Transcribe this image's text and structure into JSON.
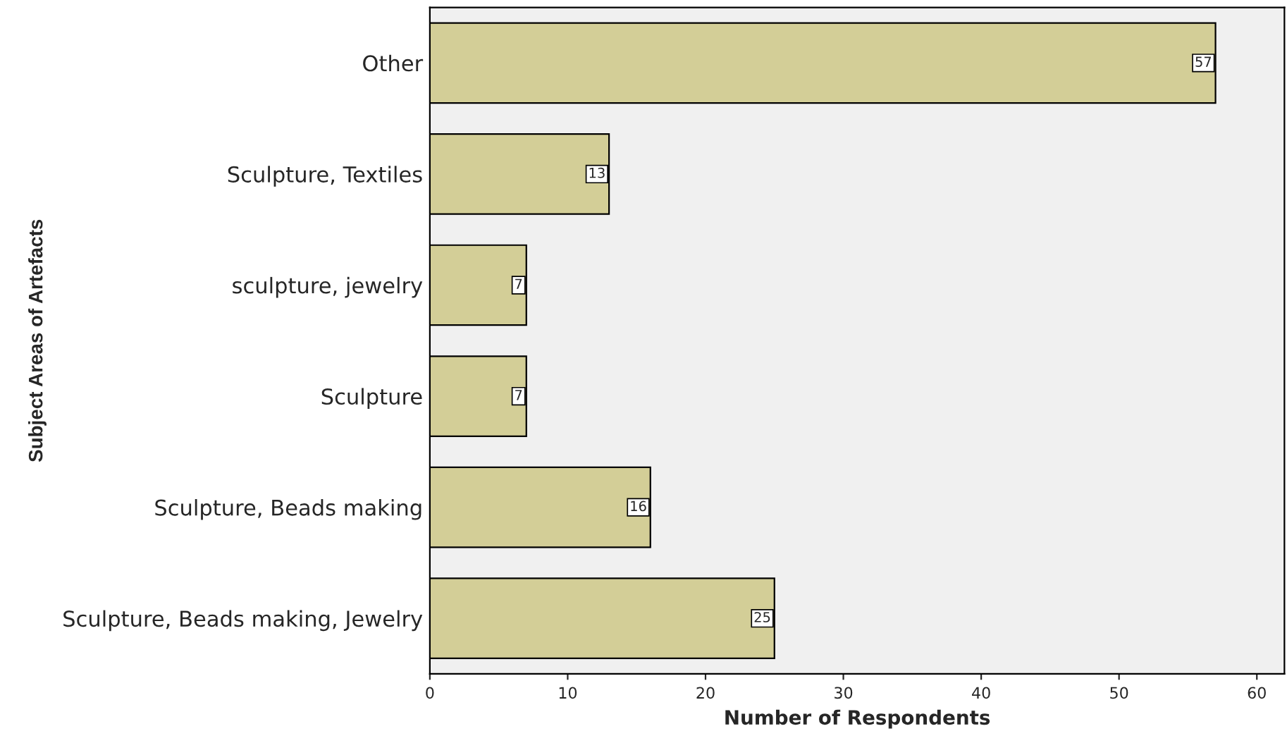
{
  "chart_data": {
    "type": "bar",
    "orientation": "horizontal",
    "xlabel": "Number of Respondents",
    "ylabel": "Subject Areas of Artefacts",
    "categories": [
      "Other",
      "Sculpture, Textiles",
      "sculpture, jewelry",
      "Sculpture",
      "Sculpture, Beads making",
      "Sculpture, Beads making, Jewelry"
    ],
    "values": [
      57,
      13,
      7,
      7,
      16,
      25
    ],
    "color": "#d3ce97",
    "xlim": [
      0,
      62
    ],
    "xticks": [
      0,
      10,
      20,
      30,
      40,
      50,
      60
    ],
    "data_labels": true,
    "grid": false
  }
}
